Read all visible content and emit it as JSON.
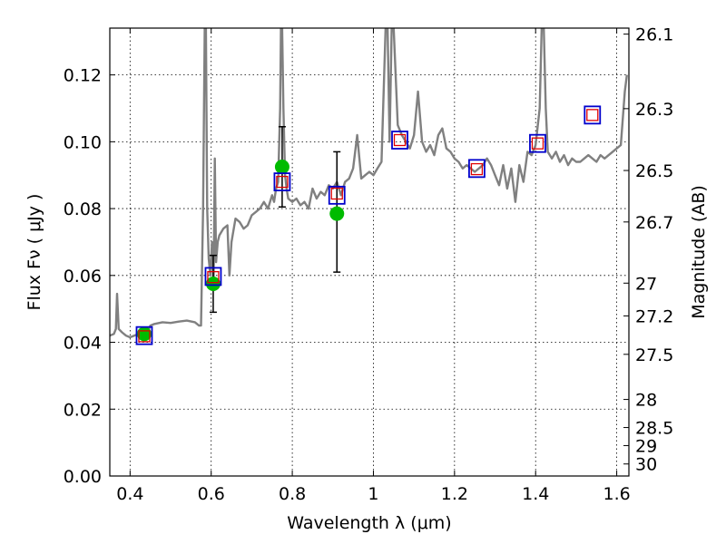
{
  "chart_data": {
    "type": "line",
    "xlabel": "Wavelength  λ (μm)",
    "ylabel": "Flux  Fν  ( μJy )",
    "y2label": "Magnitude (AB)",
    "xlim": [
      0.35,
      1.63
    ],
    "ylim": [
      0.0,
      0.134
    ],
    "grid": true,
    "x_ticks": [
      0.4,
      0.6,
      0.8,
      1.0,
      1.2,
      1.4,
      1.6
    ],
    "x_tick_labels": [
      "0.4",
      "0.6",
      "0.8",
      "1",
      "1.2",
      "1.4",
      "1.6"
    ],
    "y_ticks": [
      0.0,
      0.02,
      0.04,
      0.06,
      0.08,
      0.1,
      0.12
    ],
    "y_tick_labels": [
      "0.00",
      "0.02",
      "0.04",
      "0.06",
      "0.08",
      "0.10",
      "0.12"
    ],
    "y2_ticks": [
      {
        "label": "26.1",
        "flux": 0.1322
      },
      {
        "label": "26.3",
        "flux": 0.1099
      },
      {
        "label": "26.5",
        "flux": 0.0914
      },
      {
        "label": "26.7",
        "flux": 0.076
      },
      {
        "label": "27",
        "flux": 0.0577
      },
      {
        "label": "27.2",
        "flux": 0.0479
      },
      {
        "label": "27.5",
        "flux": 0.0364
      },
      {
        "label": "28",
        "flux": 0.0229
      },
      {
        "label": "28.5",
        "flux": 0.0145
      },
      {
        "label": "29",
        "flux": 0.0091
      },
      {
        "label": "30",
        "flux": 0.0036
      }
    ],
    "series": [
      {
        "kind": "model-spectrum",
        "color": "#808080",
        "x": [
          0.35,
          0.36,
          0.365,
          0.368,
          0.372,
          0.38,
          0.39,
          0.4,
          0.41,
          0.42,
          0.43,
          0.44,
          0.45,
          0.46,
          0.48,
          0.5,
          0.52,
          0.54,
          0.56,
          0.57,
          0.575,
          0.58,
          0.584,
          0.587,
          0.59,
          0.594,
          0.598,
          0.602,
          0.606,
          0.609,
          0.612,
          0.616,
          0.62,
          0.63,
          0.64,
          0.645,
          0.65,
          0.66,
          0.67,
          0.68,
          0.69,
          0.7,
          0.71,
          0.72,
          0.73,
          0.74,
          0.75,
          0.755,
          0.76,
          0.765,
          0.77,
          0.772,
          0.775,
          0.778,
          0.782,
          0.786,
          0.79,
          0.8,
          0.81,
          0.82,
          0.83,
          0.84,
          0.85,
          0.86,
          0.87,
          0.88,
          0.89,
          0.9,
          0.91,
          0.92,
          0.93,
          0.94,
          0.95,
          0.96,
          0.97,
          0.98,
          0.99,
          1.0,
          1.01,
          1.02,
          1.03,
          1.035,
          1.04,
          1.045,
          1.05,
          1.06,
          1.07,
          1.08,
          1.09,
          1.1,
          1.11,
          1.12,
          1.13,
          1.14,
          1.15,
          1.16,
          1.17,
          1.18,
          1.19,
          1.2,
          1.21,
          1.22,
          1.23,
          1.24,
          1.25,
          1.26,
          1.27,
          1.28,
          1.29,
          1.3,
          1.31,
          1.32,
          1.33,
          1.34,
          1.35,
          1.36,
          1.37,
          1.38,
          1.39,
          1.4,
          1.41,
          1.415,
          1.42,
          1.425,
          1.43,
          1.44,
          1.45,
          1.46,
          1.47,
          1.48,
          1.49,
          1.5,
          1.51,
          1.52,
          1.53,
          1.54,
          1.55,
          1.56,
          1.57,
          1.58,
          1.59,
          1.6,
          1.61,
          1.62,
          1.625
        ],
        "y": [
          0.042,
          0.0425,
          0.044,
          0.0545,
          0.044,
          0.043,
          0.042,
          0.0415,
          0.042,
          0.0425,
          0.043,
          0.042,
          0.045,
          0.0455,
          0.046,
          0.0458,
          0.0462,
          0.0465,
          0.046,
          0.045,
          0.045,
          0.08,
          0.134,
          0.134,
          0.08,
          0.065,
          0.06,
          0.07,
          0.058,
          0.095,
          0.064,
          0.07,
          0.072,
          0.074,
          0.075,
          0.06,
          0.07,
          0.077,
          0.076,
          0.074,
          0.075,
          0.078,
          0.079,
          0.08,
          0.082,
          0.08,
          0.084,
          0.082,
          0.086,
          0.088,
          0.11,
          0.134,
          0.134,
          0.11,
          0.09,
          0.086,
          0.083,
          0.082,
          0.083,
          0.081,
          0.082,
          0.08,
          0.086,
          0.083,
          0.085,
          0.084,
          0.087,
          0.086,
          0.088,
          0.084,
          0.088,
          0.089,
          0.092,
          0.102,
          0.089,
          0.09,
          0.091,
          0.09,
          0.092,
          0.094,
          0.134,
          0.134,
          0.1,
          0.134,
          0.134,
          0.105,
          0.102,
          0.1,
          0.098,
          0.102,
          0.115,
          0.1,
          0.097,
          0.099,
          0.096,
          0.102,
          0.104,
          0.098,
          0.097,
          0.095,
          0.094,
          0.092,
          0.093,
          0.092,
          0.091,
          0.092,
          0.093,
          0.095,
          0.093,
          0.09,
          0.087,
          0.093,
          0.086,
          0.092,
          0.082,
          0.093,
          0.088,
          0.097,
          0.096,
          0.099,
          0.11,
          0.134,
          0.134,
          0.11,
          0.097,
          0.095,
          0.097,
          0.094,
          0.096,
          0.093,
          0.095,
          0.094,
          0.094,
          0.095,
          0.096,
          0.095,
          0.094,
          0.096,
          0.095,
          0.096,
          0.097,
          0.098,
          0.099,
          0.115,
          0.12
        ]
      },
      {
        "kind": "model-photometry",
        "marker": "square",
        "color": "#e00000",
        "x": [
          0.435,
          0.605,
          0.775,
          0.91,
          1.065,
          1.255,
          1.405,
          1.54
        ],
        "y": [
          0.0418,
          0.0595,
          0.088,
          0.0845,
          0.1005,
          0.0918,
          0.0995,
          0.108
        ]
      },
      {
        "kind": "synthetic-photometry",
        "marker": "square",
        "color": "#0000cc",
        "x": [
          0.435,
          0.605,
          0.775,
          0.91,
          1.065,
          1.255,
          1.405,
          1.54
        ],
        "y": [
          0.042,
          0.0597,
          0.088,
          0.084,
          0.1005,
          0.092,
          0.0995,
          0.108
        ]
      },
      {
        "kind": "observed-photometry",
        "marker": "circle",
        "color": "#00bb00",
        "x": [
          0.435,
          0.605,
          0.775,
          0.91
        ],
        "y": [
          0.0425,
          0.0575,
          0.0925,
          0.0785
        ],
        "yerr_low": [
          0.0,
          0.0085,
          0.012,
          0.0175
        ],
        "yerr_high": [
          0.0,
          0.0085,
          0.012,
          0.0185
        ]
      }
    ]
  }
}
